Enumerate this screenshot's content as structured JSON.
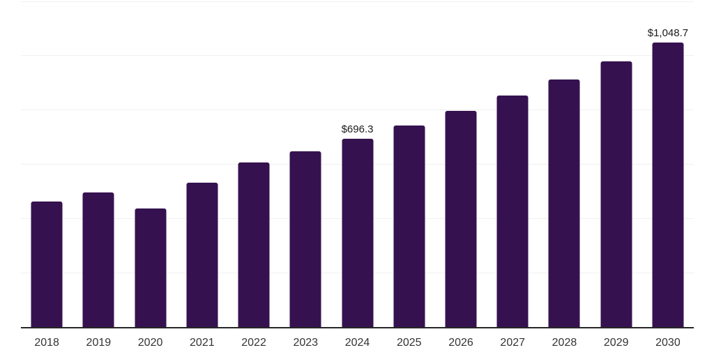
{
  "chart_data": {
    "type": "bar",
    "title": "",
    "xlabel": "",
    "ylabel": "",
    "categories": [
      "2018",
      "2019",
      "2020",
      "2021",
      "2022",
      "2023",
      "2024",
      "2025",
      "2026",
      "2027",
      "2028",
      "2029",
      "2030"
    ],
    "values": [
      464.9,
      498.9,
      439.2,
      534.7,
      608.0,
      650.4,
      696.3,
      745.5,
      798.2,
      854.6,
      915.0,
      979.7,
      1048.7
    ],
    "labeled_points": [
      {
        "category": "2024",
        "label": "$696.3"
      },
      {
        "category": "2030",
        "label": "$1,048.7"
      }
    ],
    "ylim": [
      0,
      1200
    ],
    "gridline_step": 200,
    "grid": true,
    "legend": false,
    "y_tick_labels_visible": false,
    "colors": {
      "bar": "#35124F",
      "axis_line": "#262626",
      "gridline": "#F0F0F0",
      "value_label_text": "#1A1A1A",
      "axis_label_text": "#333333",
      "background": "#FFFFFF"
    }
  }
}
